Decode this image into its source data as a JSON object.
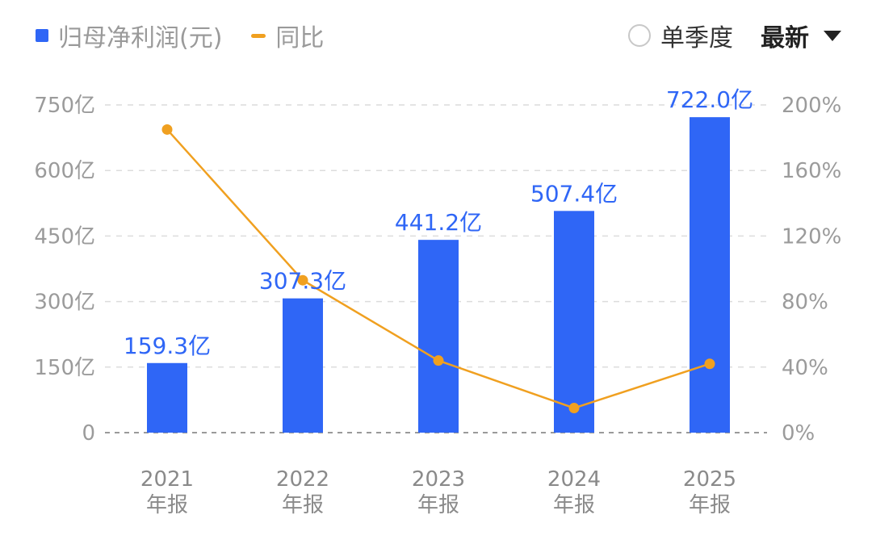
{
  "legend": {
    "bar_label": "归母净利润(元)",
    "line_label": "同比"
  },
  "controls": {
    "quarter_label": "单季度",
    "sort_label": "最新"
  },
  "colors": {
    "bar": "#2f66f6",
    "line": "#f0a020",
    "grid": "#dcdcdc"
  },
  "chart_data": {
    "type": "bar",
    "categories": [
      "2021 年报",
      "2022 年报",
      "2023 年报",
      "2024 年报",
      "2025 年报"
    ],
    "x_year": [
      "2021",
      "2022",
      "2023",
      "2024",
      "2025"
    ],
    "x_suffix": [
      "年报",
      "年报",
      "年报",
      "年报",
      "年报"
    ],
    "series": [
      {
        "name": "归母净利润(元)",
        "type": "bar",
        "values": [
          159.3,
          307.3,
          441.2,
          507.4,
          722.0
        ],
        "labels": [
          "159.3亿",
          "307.3亿",
          "441.2亿",
          "507.4亿",
          "722.0亿"
        ]
      },
      {
        "name": "同比",
        "type": "line",
        "axis": "right",
        "values": [
          185,
          93,
          44,
          15,
          42
        ]
      }
    ],
    "y_left": {
      "ticks": [
        "0",
        "150亿",
        "300亿",
        "450亿",
        "600亿",
        "750亿"
      ],
      "range": [
        0,
        750
      ]
    },
    "y_right": {
      "ticks": [
        "0%",
        "40%",
        "80%",
        "120%",
        "160%",
        "200%"
      ],
      "range": [
        0,
        200
      ]
    },
    "grid": true,
    "legend_position": "top-left"
  }
}
